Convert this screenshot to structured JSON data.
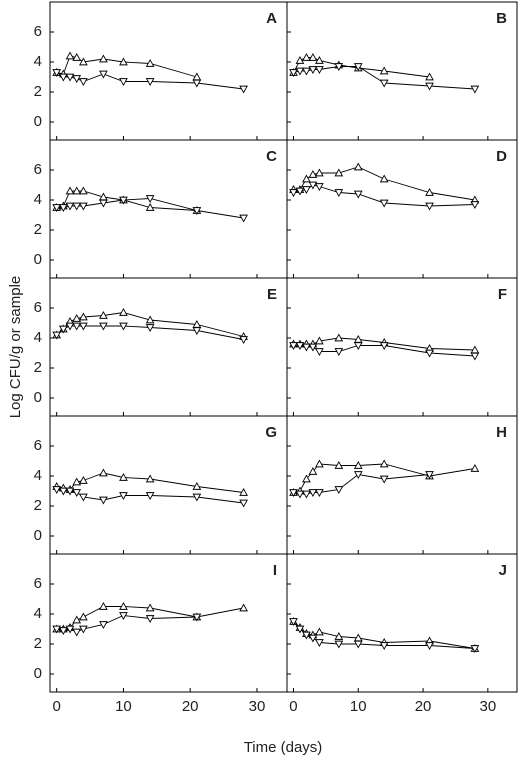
{
  "figure": {
    "xlabel": "Time (days)",
    "ylabel": "Log CFU/g or sample"
  },
  "chart_data": [
    {
      "type": "line",
      "label": "A",
      "x": [
        0,
        1,
        2,
        3,
        4,
        7,
        10,
        14,
        21,
        28
      ],
      "xlim": [
        -1,
        34.5
      ],
      "ylim": [
        -1.2,
        8
      ],
      "xticks": [
        0,
        10,
        20,
        30
      ],
      "yticks": [
        0,
        2,
        4,
        6
      ],
      "series": [
        {
          "marker": "triangle-up",
          "color": "#000000",
          "values": [
            3.3,
            3.2,
            4.4,
            4.3,
            4.0,
            4.2,
            4.0,
            3.9,
            3.0,
            null
          ]
        },
        {
          "marker": "triangle-down",
          "color": "#000000",
          "values": [
            3.3,
            3.0,
            3.0,
            2.9,
            2.7,
            3.2,
            2.7,
            2.7,
            2.6,
            2.2
          ]
        }
      ]
    },
    {
      "type": "line",
      "label": "B",
      "x": [
        0,
        1,
        2,
        3,
        4,
        7,
        10,
        14,
        21,
        28
      ],
      "xlim": [
        -1,
        34.5
      ],
      "ylim": [
        -1.2,
        8
      ],
      "xticks": [
        0,
        10,
        20,
        30
      ],
      "yticks": [
        0,
        2,
        4,
        6
      ],
      "series": [
        {
          "marker": "triangle-up",
          "color": "#000000",
          "values": [
            3.3,
            4.1,
            4.3,
            4.3,
            4.1,
            3.8,
            3.6,
            3.4,
            3.0,
            null
          ]
        },
        {
          "marker": "triangle-down",
          "color": "#000000",
          "values": [
            3.3,
            3.4,
            3.4,
            3.5,
            3.5,
            3.7,
            3.7,
            2.6,
            2.4,
            2.2
          ]
        }
      ]
    },
    {
      "type": "line",
      "label": "C",
      "x": [
        0,
        1,
        2,
        3,
        4,
        7,
        10,
        14,
        21,
        28
      ],
      "xlim": [
        -1,
        34.5
      ],
      "ylim": [
        -1.2,
        8
      ],
      "xticks": [
        0,
        10,
        20,
        30
      ],
      "yticks": [
        0,
        2,
        4,
        6
      ],
      "series": [
        {
          "marker": "triangle-up",
          "color": "#000000",
          "values": [
            3.5,
            3.6,
            4.6,
            4.6,
            4.6,
            4.2,
            4.0,
            3.5,
            3.3,
            null
          ]
        },
        {
          "marker": "triangle-down",
          "color": "#000000",
          "values": [
            3.5,
            3.5,
            3.6,
            3.6,
            3.6,
            3.8,
            4.0,
            4.1,
            3.3,
            2.8
          ]
        }
      ]
    },
    {
      "type": "line",
      "label": "D",
      "x": [
        0,
        1,
        2,
        3,
        4,
        7,
        10,
        14,
        21,
        28
      ],
      "xlim": [
        -1,
        34.5
      ],
      "ylim": [
        -1.2,
        8
      ],
      "xticks": [
        0,
        10,
        20,
        30
      ],
      "yticks": [
        0,
        2,
        4,
        6
      ],
      "series": [
        {
          "marker": "triangle-up",
          "color": "#000000",
          "values": [
            4.7,
            4.7,
            5.4,
            5.7,
            5.8,
            5.8,
            6.2,
            5.4,
            4.5,
            4.0
          ]
        },
        {
          "marker": "triangle-down",
          "color": "#000000",
          "values": [
            4.5,
            4.6,
            4.7,
            5.0,
            4.9,
            4.5,
            4.4,
            3.8,
            3.6,
            3.7
          ]
        }
      ]
    },
    {
      "type": "line",
      "label": "E",
      "x": [
        0,
        1,
        2,
        3,
        4,
        7,
        10,
        14,
        21,
        28
      ],
      "xlim": [
        -1,
        34.5
      ],
      "ylim": [
        -1.2,
        8
      ],
      "xticks": [
        0,
        10,
        20,
        30
      ],
      "yticks": [
        0,
        2,
        4,
        6
      ],
      "series": [
        {
          "marker": "triangle-up",
          "color": "#000000",
          "values": [
            4.2,
            4.6,
            5.1,
            5.3,
            5.4,
            5.5,
            5.7,
            5.2,
            4.9,
            4.1
          ]
        },
        {
          "marker": "triangle-down",
          "color": "#000000",
          "values": [
            4.2,
            4.6,
            4.8,
            4.8,
            4.8,
            4.8,
            4.8,
            4.7,
            4.5,
            3.9
          ]
        }
      ]
    },
    {
      "type": "line",
      "label": "F",
      "x": [
        0,
        1,
        2,
        3,
        4,
        7,
        10,
        14,
        21,
        28
      ],
      "xlim": [
        -1,
        34.5
      ],
      "ylim": [
        -1.2,
        8
      ],
      "xticks": [
        0,
        10,
        20,
        30
      ],
      "yticks": [
        0,
        2,
        4,
        6
      ],
      "series": [
        {
          "marker": "triangle-up",
          "color": "#000000",
          "values": [
            3.6,
            3.6,
            3.6,
            3.6,
            3.8,
            4.0,
            3.9,
            3.7,
            3.3,
            3.2
          ]
        },
        {
          "marker": "triangle-down",
          "color": "#000000",
          "values": [
            3.5,
            3.5,
            3.4,
            3.4,
            3.1,
            3.1,
            3.5,
            3.5,
            3.0,
            2.8
          ]
        }
      ]
    },
    {
      "type": "line",
      "label": "G",
      "x": [
        0,
        1,
        2,
        3,
        4,
        7,
        10,
        14,
        21,
        28
      ],
      "xlim": [
        -1,
        34.5
      ],
      "ylim": [
        -1.2,
        8
      ],
      "xticks": [
        0,
        10,
        20,
        30
      ],
      "yticks": [
        0,
        2,
        4,
        6
      ],
      "series": [
        {
          "marker": "triangle-up",
          "color": "#000000",
          "values": [
            3.3,
            3.2,
            3.1,
            3.6,
            3.7,
            4.2,
            3.9,
            3.8,
            3.3,
            2.9
          ]
        },
        {
          "marker": "triangle-down",
          "color": "#000000",
          "values": [
            3.1,
            3.0,
            3.0,
            2.9,
            2.6,
            2.4,
            2.7,
            2.7,
            2.6,
            2.2
          ]
        }
      ]
    },
    {
      "type": "line",
      "label": "H",
      "x": [
        0,
        1,
        2,
        3,
        4,
        7,
        10,
        14,
        21,
        28
      ],
      "xlim": [
        -1,
        34.5
      ],
      "ylim": [
        -1.2,
        8
      ],
      "xticks": [
        0,
        10,
        20,
        30
      ],
      "yticks": [
        0,
        2,
        4,
        6
      ],
      "series": [
        {
          "marker": "triangle-up",
          "color": "#000000",
          "values": [
            2.9,
            3.0,
            3.8,
            4.3,
            4.8,
            4.7,
            4.7,
            4.8,
            4.0,
            4.5
          ]
        },
        {
          "marker": "triangle-down",
          "color": "#000000",
          "values": [
            2.9,
            2.8,
            2.8,
            2.9,
            2.9,
            3.1,
            4.1,
            3.8,
            4.1,
            null
          ]
        }
      ]
    },
    {
      "type": "line",
      "label": "I",
      "x": [
        0,
        1,
        2,
        3,
        4,
        7,
        10,
        14,
        21,
        28
      ],
      "xlim": [
        -1,
        34.5
      ],
      "ylim": [
        -1.2,
        8
      ],
      "xticks": [
        0,
        10,
        20,
        30
      ],
      "yticks": [
        0,
        2,
        4,
        6
      ],
      "series": [
        {
          "marker": "triangle-up",
          "color": "#000000",
          "values": [
            3.0,
            3.0,
            3.1,
            3.6,
            3.8,
            4.5,
            4.5,
            4.4,
            3.8,
            4.4
          ]
        },
        {
          "marker": "triangle-down",
          "color": "#000000",
          "values": [
            3.0,
            2.9,
            3.0,
            2.8,
            3.0,
            3.3,
            3.9,
            3.7,
            3.8,
            null
          ]
        }
      ]
    },
    {
      "type": "line",
      "label": "J",
      "x": [
        0,
        1,
        2,
        3,
        4,
        7,
        10,
        14,
        21,
        28
      ],
      "xlim": [
        -1,
        34.5
      ],
      "ylim": [
        -1.2,
        8
      ],
      "xticks": [
        0,
        10,
        20,
        30
      ],
      "yticks": [
        0,
        2,
        4,
        6
      ],
      "series": [
        {
          "marker": "triangle-up",
          "color": "#000000",
          "values": [
            3.5,
            3.1,
            2.7,
            2.6,
            2.8,
            2.5,
            2.4,
            2.1,
            2.2,
            1.7
          ]
        },
        {
          "marker": "triangle-down",
          "color": "#000000",
          "values": [
            3.5,
            3.0,
            2.6,
            2.4,
            2.1,
            2.0,
            2.0,
            1.9,
            1.9,
            1.7
          ]
        }
      ]
    }
  ]
}
